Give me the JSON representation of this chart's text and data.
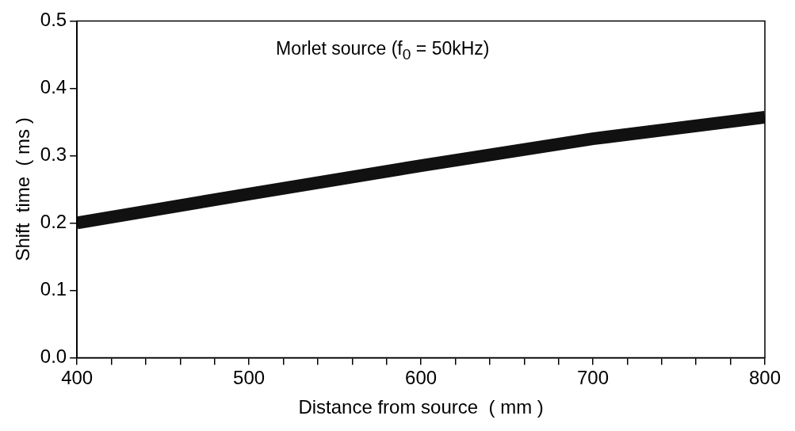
{
  "chart_data": {
    "type": "line",
    "xlabel": "Distance from source  ( mm )",
    "ylabel": "Shift  time  ( ms )",
    "annotations": [
      "Morlet source (f$_{0}$ = 50kHz)"
    ],
    "x": [
      400,
      500,
      600,
      700,
      800
    ],
    "series": [
      {
        "color": "#111111",
        "values": [
          0.2,
          0.243,
          0.285,
          0.325,
          0.357
        ]
      }
    ],
    "xlim": [
      400,
      800
    ],
    "xticks": [
      400,
      {
        "value": 420,
        "label": null
      },
      {
        "value": 440,
        "label": null
      },
      {
        "value": 460,
        "label": null
      },
      {
        "value": 480,
        "label": null
      },
      500,
      {
        "value": 520,
        "label": null
      },
      {
        "value": 540,
        "label": null
      },
      {
        "value": 560,
        "label": null
      },
      {
        "value": 580,
        "label": null
      },
      600,
      {
        "value": 620,
        "label": null
      },
      {
        "value": 640,
        "label": null
      },
      {
        "value": 660,
        "label": null
      },
      {
        "value": 680,
        "label": null
      },
      700,
      {
        "value": 720,
        "label": null
      },
      {
        "value": 740,
        "label": null
      },
      {
        "value": 760,
        "label": null
      },
      {
        "value": 780,
        "label": null
      },
      800
    ],
    "ylim": [
      0,
      0.5
    ],
    "yticks": [
      {
        "value": 0,
        "label": "0.0"
      },
      {
        "value": 0.1,
        "label": "0.1"
      },
      {
        "value": 0.2,
        "label": "0.2"
      },
      {
        "value": 0.3,
        "label": "0.3"
      },
      {
        "value": 0.4,
        "label": "0.4"
      },
      {
        "value": 0.5,
        "label": "0.5"
      }
    ],
    "grid": false,
    "legend": false,
    "marker": "none",
    "line_style": "solid"
  }
}
